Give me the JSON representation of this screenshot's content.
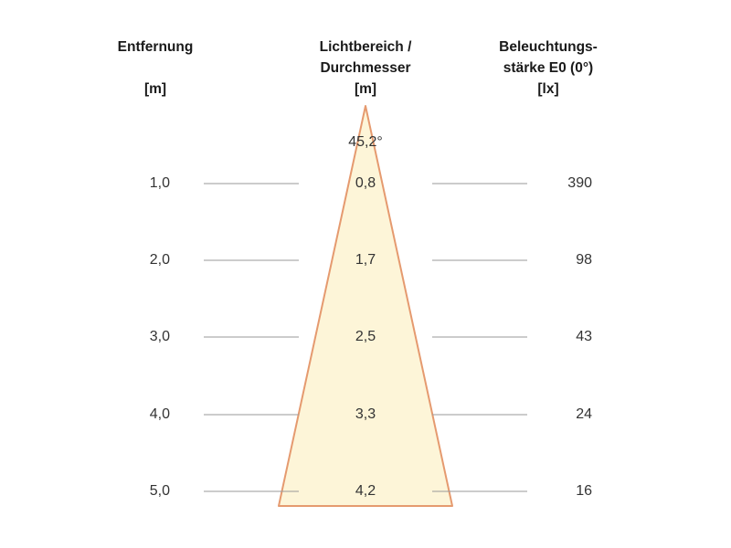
{
  "headers": {
    "distance": {
      "line1": "Entfernung",
      "unit": "[m]"
    },
    "beam": {
      "line1": "Lichtbereich /",
      "line2": "Durchmesser",
      "unit": "[m]"
    },
    "illuminance": {
      "line1": "Beleuchtungs-",
      "line2": "stärke E0 (0°)",
      "unit": "[lx]"
    }
  },
  "beam_angle": "45,2°",
  "rows": [
    {
      "distance": "1,0",
      "diameter": "0,8",
      "lux": "390"
    },
    {
      "distance": "2,0",
      "diameter": "1,7",
      "lux": "98"
    },
    {
      "distance": "3,0",
      "diameter": "2,5",
      "lux": "43"
    },
    {
      "distance": "4,0",
      "diameter": "3,3",
      "lux": "24"
    },
    {
      "distance": "5,0",
      "diameter": "4,2",
      "lux": "16"
    }
  ],
  "colors": {
    "cone_fill": "#fdf5d8",
    "cone_edge": "#e59a6f",
    "rule_line": "#999999"
  }
}
